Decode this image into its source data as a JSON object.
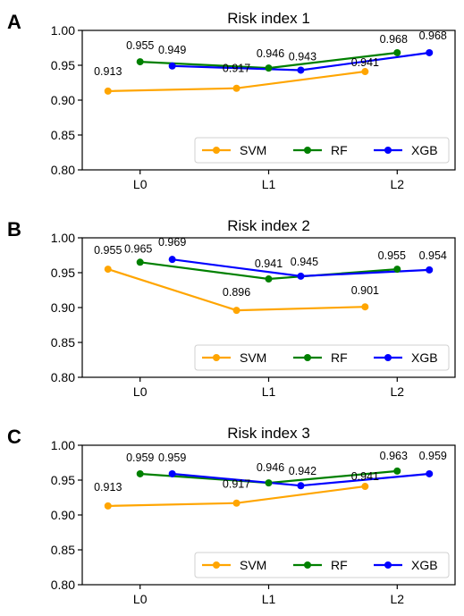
{
  "chart_data": [
    {
      "panel": "A",
      "type": "line",
      "title": "Risk index 1",
      "categories": [
        "L0",
        "L1",
        "L2"
      ],
      "ylim": [
        0.8,
        1.0
      ],
      "yticks": [
        "0.80",
        "0.85",
        "0.90",
        "0.95",
        "1.00"
      ],
      "legend_position": "lower-right",
      "series": [
        {
          "name": "SVM",
          "color": "#FFA500",
          "x": [
            -0.25,
            0.75,
            1.75
          ],
          "values": [
            0.913,
            0.917,
            0.941
          ],
          "labels": [
            "0.913",
            "0.917",
            "0.941"
          ]
        },
        {
          "name": "RF",
          "color": "#008000",
          "x": [
            0.0,
            1.0,
            2.0
          ],
          "values": [
            0.955,
            0.946,
            0.968
          ],
          "labels": [
            "0.955",
            "0.946",
            "0.968"
          ]
        },
        {
          "name": "XGB",
          "color": "#0000FF",
          "x": [
            0.25,
            1.25,
            2.25
          ],
          "values": [
            0.949,
            0.943,
            0.968
          ],
          "labels": [
            "0.949",
            "0.943",
            "0.968"
          ]
        }
      ]
    },
    {
      "panel": "B",
      "type": "line",
      "title": "Risk index 2",
      "categories": [
        "L0",
        "L1",
        "L2"
      ],
      "ylim": [
        0.8,
        1.0
      ],
      "yticks": [
        "0.80",
        "0.85",
        "0.90",
        "0.95",
        "1.00"
      ],
      "legend_position": "lower-right",
      "series": [
        {
          "name": "SVM",
          "color": "#FFA500",
          "x": [
            -0.25,
            0.75,
            1.75
          ],
          "values": [
            0.955,
            0.896,
            0.901
          ],
          "labels": [
            "0.955",
            "0.896",
            "0.901"
          ]
        },
        {
          "name": "RF",
          "color": "#008000",
          "x": [
            0.0,
            1.0,
            2.0
          ],
          "values": [
            0.965,
            0.941,
            0.955
          ],
          "labels": [
            "0.965",
            "0.941",
            "0.955"
          ]
        },
        {
          "name": "XGB",
          "color": "#0000FF",
          "x": [
            0.25,
            1.25,
            2.25
          ],
          "values": [
            0.969,
            0.945,
            0.954
          ],
          "labels": [
            "0.969",
            "0.945",
            "0.954"
          ]
        }
      ]
    },
    {
      "panel": "C",
      "type": "line",
      "title": "Risk index 3",
      "categories": [
        "L0",
        "L1",
        "L2"
      ],
      "ylim": [
        0.8,
        1.0
      ],
      "yticks": [
        "0.80",
        "0.85",
        "0.90",
        "0.95",
        "1.00"
      ],
      "legend_position": "lower-right",
      "series": [
        {
          "name": "SVM",
          "color": "#FFA500",
          "x": [
            -0.25,
            0.75,
            1.75
          ],
          "values": [
            0.913,
            0.917,
            0.941
          ],
          "labels": [
            "0.913",
            "0.917",
            "0.941"
          ]
        },
        {
          "name": "RF",
          "color": "#008000",
          "x": [
            0.0,
            1.0,
            2.0
          ],
          "values": [
            0.959,
            0.946,
            0.963
          ],
          "labels": [
            "0.959",
            "0.946",
            "0.963"
          ]
        },
        {
          "name": "XGB",
          "color": "#0000FF",
          "x": [
            0.25,
            1.25,
            2.25
          ],
          "values": [
            0.959,
            0.942,
            0.959
          ],
          "labels": [
            "0.959",
            "0.942",
            "0.959"
          ]
        }
      ]
    }
  ]
}
